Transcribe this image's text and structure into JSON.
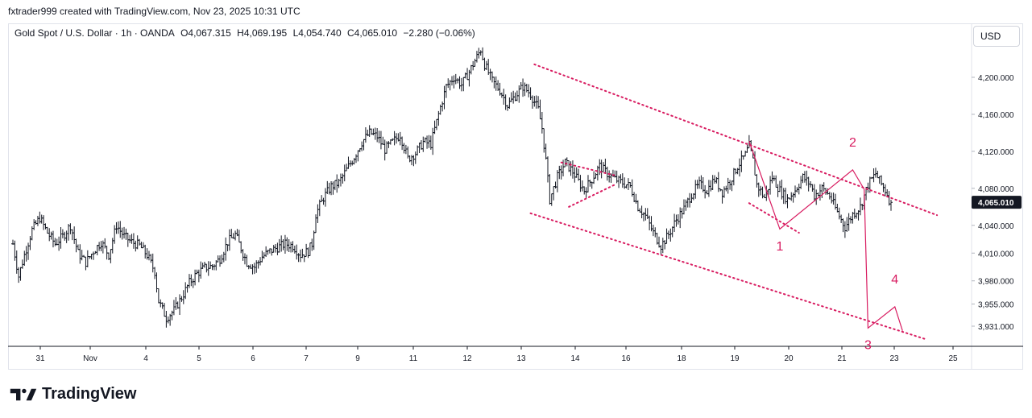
{
  "header": {
    "credit": "fxtrader999 created with TradingView.com, Nov 23, 2025 10:31 UTC"
  },
  "legend": {
    "symbol": "Gold Spot / U.S. Dollar · 1h · OANDA",
    "open_label": "O",
    "open": "4,067.315",
    "high_label": "H",
    "high": "4,069.195",
    "low_label": "L",
    "low": "4,054.740",
    "close_label": "C",
    "close": "4,065.010",
    "change": "−2.280 (−0.06%)"
  },
  "currency": "USD",
  "brand": {
    "name": "TradingView",
    "logo_icon": "tradingview-logo-icon"
  },
  "colors": {
    "bars": "#131722",
    "annotation": "#d81b60",
    "price_label_bg": "#131722",
    "grid": "#f0f3fa"
  },
  "chart_data": {
    "type": "ohlc",
    "xlabel": "",
    "ylabel": "",
    "ylim": [
      3895,
      4245
    ],
    "y_ticks": [
      4200,
      4160,
      4120,
      4080,
      4040,
      4010,
      3980,
      3955,
      3931
    ],
    "y_tick_labels": [
      "4,200.000",
      "4,160.000",
      "4,120.000",
      "4,080.000",
      "4,040.000",
      "4,010.000",
      "3,980.000",
      "3,955.000",
      "3,931.000"
    ],
    "x_tick_labels": [
      "31",
      "Nov",
      "4",
      "5",
      "6",
      "7",
      "9",
      "11",
      "12",
      "13",
      "14",
      "16",
      "18",
      "19",
      "20",
      "21",
      "23",
      "25"
    ],
    "last_price": 4065.01,
    "last_price_label": "4,065.010",
    "price_path": [
      [
        0,
        4020
      ],
      [
        3,
        3985
      ],
      [
        6,
        4008
      ],
      [
        10,
        4035
      ],
      [
        14,
        4048
      ],
      [
        18,
        4032
      ],
      [
        22,
        4020
      ],
      [
        26,
        4028
      ],
      [
        30,
        4040
      ],
      [
        34,
        4010
      ],
      [
        38,
        4000
      ],
      [
        42,
        4012
      ],
      [
        46,
        4022
      ],
      [
        50,
        4008
      ],
      [
        54,
        4040
      ],
      [
        58,
        4028
      ],
      [
        62,
        4022
      ],
      [
        66,
        4018
      ],
      [
        70,
        4008
      ],
      [
        74,
        3990
      ],
      [
        76,
        3958
      ],
      [
        80,
        3940
      ],
      [
        84,
        3948
      ],
      [
        88,
        3962
      ],
      [
        92,
        3978
      ],
      [
        96,
        3988
      ],
      [
        100,
        3994
      ],
      [
        104,
        3996
      ],
      [
        108,
        4004
      ],
      [
        112,
        4022
      ],
      [
        116,
        4030
      ],
      [
        118,
        4020
      ],
      [
        122,
        4000
      ],
      [
        126,
        3995
      ],
      [
        130,
        4006
      ],
      [
        134,
        4012
      ],
      [
        138,
        4016
      ],
      [
        142,
        4020
      ],
      [
        146,
        4018
      ],
      [
        150,
        4008
      ],
      [
        154,
        4012
      ],
      [
        156,
        4020
      ],
      [
        158,
        4052
      ],
      [
        162,
        4070
      ],
      [
        166,
        4082
      ],
      [
        170,
        4086
      ],
      [
        174,
        4100
      ],
      [
        178,
        4114
      ],
      [
        182,
        4130
      ],
      [
        186,
        4140
      ],
      [
        190,
        4136
      ],
      [
        194,
        4122
      ],
      [
        198,
        4130
      ],
      [
        202,
        4138
      ],
      [
        206,
        4112
      ],
      [
        210,
        4118
      ],
      [
        214,
        4130
      ],
      [
        218,
        4128
      ],
      [
        222,
        4160
      ],
      [
        226,
        4190
      ],
      [
        230,
        4200
      ],
      [
        234,
        4192
      ],
      [
        238,
        4206
      ],
      [
        242,
        4222
      ],
      [
        244,
        4230
      ],
      [
        246,
        4214
      ],
      [
        250,
        4196
      ],
      [
        254,
        4186
      ],
      [
        258,
        4170
      ],
      [
        262,
        4180
      ],
      [
        266,
        4190
      ],
      [
        270,
        4182
      ],
      [
        274,
        4165
      ],
      [
        276,
        4145
      ],
      [
        278,
        4110
      ],
      [
        280,
        4068
      ],
      [
        284,
        4092
      ],
      [
        288,
        4108
      ],
      [
        292,
        4098
      ],
      [
        296,
        4084
      ],
      [
        298,
        4078
      ],
      [
        302,
        4090
      ],
      [
        306,
        4104
      ],
      [
        310,
        4096
      ],
      [
        314,
        4090
      ],
      [
        318,
        4086
      ],
      [
        322,
        4082
      ],
      [
        326,
        4060
      ],
      [
        330,
        4050
      ],
      [
        334,
        4032
      ],
      [
        338,
        4018
      ],
      [
        342,
        4030
      ],
      [
        346,
        4046
      ],
      [
        350,
        4058
      ],
      [
        354,
        4074
      ],
      [
        358,
        4084
      ],
      [
        362,
        4078
      ],
      [
        366,
        4090
      ],
      [
        370,
        4076
      ],
      [
        374,
        4088
      ],
      [
        378,
        4104
      ],
      [
        382,
        4116
      ],
      [
        384,
        4126
      ],
      [
        386,
        4110
      ],
      [
        388,
        4084
      ],
      [
        392,
        4070
      ],
      [
        396,
        4092
      ],
      [
        400,
        4078
      ],
      [
        404,
        4068
      ],
      [
        408,
        4078
      ],
      [
        412,
        4092
      ],
      [
        416,
        4084
      ],
      [
        418,
        4072
      ],
      [
        422,
        4080
      ],
      [
        426,
        4072
      ],
      [
        430,
        4054
      ],
      [
        434,
        4038
      ],
      [
        438,
        4052
      ],
      [
        442,
        4060
      ],
      [
        446,
        4084
      ],
      [
        450,
        4096
      ],
      [
        452,
        4088
      ],
      [
        456,
        4074
      ],
      [
        458,
        4062
      ]
    ],
    "x_index_range": [
      0,
      458
    ],
    "dotted_lines": [
      {
        "name": "upper-channel-line",
        "from": [
          272,
          4214
        ],
        "to": [
          482,
          4051
        ]
      },
      {
        "name": "lower-channel-line",
        "from": [
          270,
          4053
        ],
        "to": [
          476,
          3917
        ]
      },
      {
        "name": "flag-top-line",
        "from": [
          286,
          4108
        ],
        "to": [
          314,
          4094
        ]
      },
      {
        "name": "flag-bottom-line",
        "from": [
          290,
          4060
        ],
        "to": [
          314,
          4084
        ]
      },
      {
        "name": "small-channel-bottom-line",
        "from": [
          384,
          4064
        ],
        "to": [
          410,
          4032
        ]
      }
    ],
    "wave_path": {
      "points": [
        [
          384,
          4131
        ],
        [
          400,
          4036
        ],
        [
          438,
          4100
        ],
        [
          444,
          4079
        ],
        [
          446,
          3929
        ],
        [
          460,
          3952
        ],
        [
          464,
          3926
        ]
      ],
      "labels": [
        {
          "text": "1",
          "at": [
            400,
            4013
          ]
        },
        {
          "text": "2",
          "at": [
            438,
            4125
          ]
        },
        {
          "text": "3",
          "at": [
            446,
            3906
          ]
        },
        {
          "text": "4",
          "at": [
            460,
            3977
          ]
        }
      ]
    }
  }
}
